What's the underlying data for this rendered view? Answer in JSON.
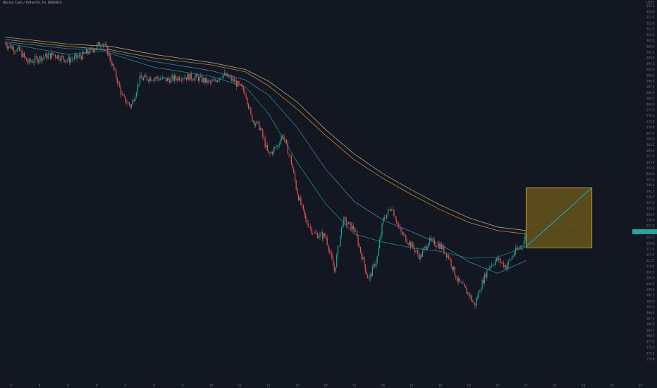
{
  "header": {
    "title": "Bitcoin Cash / TetherUS, 1h, BINANCE"
  },
  "price_axis": {
    "currency": "USDT",
    "labels": [
      "322.5",
      "320.0",
      "317.5",
      "315.0",
      "312.5",
      "310.0",
      "307.5",
      "305.0",
      "302.5",
      "300.0",
      "297.5",
      "295.0",
      "292.5",
      "290.0",
      "287.5",
      "285.0",
      "282.5",
      "280.0",
      "277.5",
      "275.0",
      "272.5",
      "270.0",
      "267.5",
      "265.0",
      "262.5",
      "260.0",
      "257.5",
      "255.0",
      "252.5",
      "250.0",
      "247.5",
      "245.0",
      "242.5",
      "240.0",
      "237.5",
      "235.0",
      "232.5",
      "230.0",
      "227.5",
      "225.0",
      "222.5",
      "220.0",
      "217.5",
      "215.0",
      "212.5",
      "210.0",
      "207.5",
      "205.0",
      "202.5",
      "200.0",
      "197.5",
      "195.0",
      "192.5",
      "190.0",
      "187.5",
      "185.0",
      "182.5",
      "180.0",
      "177.5",
      "175.0",
      "172.5",
      "170.0"
    ],
    "current_price": "225.0"
  },
  "time_axis": {
    "labels": [
      "3",
      "4",
      "5",
      "6",
      "7",
      "8",
      "9",
      "10",
      "11",
      "12",
      "13",
      "14",
      "15",
      "16",
      "17",
      "18",
      "19",
      "20",
      "21",
      "22",
      "23",
      "24",
      "25"
    ]
  },
  "colors": {
    "background": "#131722",
    "bull": "#26a69a",
    "bear": "#ef5350",
    "ma_fast": "#1e9e8f",
    "ma_slow": "#4a8fc7",
    "ma_orange": "#d99840",
    "ma_tan": "#cdb98a",
    "box_fill": "rgba(175,140,20,0.45)",
    "box_stroke": "#c8a52a",
    "projection": "#22b0c4",
    "axis_text": "#787b86",
    "price_tag": "#26a69a"
  },
  "chart_data": {
    "type": "candlestick",
    "title": "Bitcoin Cash / TetherUS, 1h, BINANCE",
    "ylim": [
      170,
      322.5
    ],
    "y_unit": "USDT",
    "x_ticks": [
      "3",
      "4",
      "5",
      "6",
      "7",
      "8",
      "9",
      "10",
      "11",
      "12",
      "13",
      "14",
      "15",
      "16",
      "17",
      "18",
      "19",
      "20",
      "21",
      "22",
      "23",
      "24",
      "25"
    ],
    "price_path": [
      {
        "day": 2.8,
        "price": 306.0
      },
      {
        "day": 3.3,
        "price": 303.0
      },
      {
        "day": 3.6,
        "price": 298.0
      },
      {
        "day": 4.0,
        "price": 300.0
      },
      {
        "day": 4.5,
        "price": 301.5
      },
      {
        "day": 5.0,
        "price": 299.0
      },
      {
        "day": 5.5,
        "price": 301.0
      },
      {
        "day": 6.0,
        "price": 305.0
      },
      {
        "day": 6.2,
        "price": 307.0
      },
      {
        "day": 6.4,
        "price": 302.0
      },
      {
        "day": 6.7,
        "price": 291.0
      },
      {
        "day": 6.9,
        "price": 283.0
      },
      {
        "day": 7.2,
        "price": 279.0
      },
      {
        "day": 7.5,
        "price": 291.0
      },
      {
        "day": 8.0,
        "price": 291.5
      },
      {
        "day": 8.5,
        "price": 290.5
      },
      {
        "day": 9.0,
        "price": 292.0
      },
      {
        "day": 9.5,
        "price": 291.5
      },
      {
        "day": 10.0,
        "price": 289.0
      },
      {
        "day": 10.4,
        "price": 293.0
      },
      {
        "day": 10.8,
        "price": 290.0
      },
      {
        "day": 11.2,
        "price": 285.0
      },
      {
        "day": 11.4,
        "price": 274.0
      },
      {
        "day": 11.7,
        "price": 270.0
      },
      {
        "day": 12.0,
        "price": 258.0
      },
      {
        "day": 12.3,
        "price": 262.0
      },
      {
        "day": 12.5,
        "price": 267.0
      },
      {
        "day": 12.8,
        "price": 255.0
      },
      {
        "day": 13.0,
        "price": 242.0
      },
      {
        "day": 13.3,
        "price": 230.0
      },
      {
        "day": 13.6,
        "price": 224.0
      },
      {
        "day": 14.0,
        "price": 223.0
      },
      {
        "day": 14.3,
        "price": 208.0
      },
      {
        "day": 14.6,
        "price": 230.0
      },
      {
        "day": 15.0,
        "price": 226.0
      },
      {
        "day": 15.5,
        "price": 204.0
      },
      {
        "day": 15.8,
        "price": 214.0
      },
      {
        "day": 16.0,
        "price": 230.0
      },
      {
        "day": 16.3,
        "price": 236.0
      },
      {
        "day": 16.6,
        "price": 225.0
      },
      {
        "day": 17.0,
        "price": 219.0
      },
      {
        "day": 17.3,
        "price": 214.0
      },
      {
        "day": 17.6,
        "price": 221.0
      },
      {
        "day": 18.0,
        "price": 219.0
      },
      {
        "day": 18.3,
        "price": 214.0
      },
      {
        "day": 18.6,
        "price": 204.0
      },
      {
        "day": 19.0,
        "price": 198.0
      },
      {
        "day": 19.2,
        "price": 193.0
      },
      {
        "day": 19.4,
        "price": 201.0
      },
      {
        "day": 19.7,
        "price": 210.0
      },
      {
        "day": 20.0,
        "price": 213.0
      },
      {
        "day": 20.3,
        "price": 210.0
      },
      {
        "day": 20.6,
        "price": 216.0
      },
      {
        "day": 20.9,
        "price": 220.0
      },
      {
        "day": 21.0,
        "price": 225.0
      }
    ],
    "moving_averages": [
      {
        "points": [
          {
            "day": 2.8,
            "price": 306.5
          },
          {
            "day": 5.0,
            "price": 301.5
          },
          {
            "day": 6.2,
            "price": 303.0
          },
          {
            "day": 8.0,
            "price": 296.0
          },
          {
            "day": 10.0,
            "price": 292.0
          },
          {
            "day": 11.2,
            "price": 287.5
          },
          {
            "day": 12.0,
            "price": 276.0
          },
          {
            "day": 13.0,
            "price": 255.0
          },
          {
            "day": 14.0,
            "price": 237.0
          },
          {
            "day": 15.0,
            "price": 224.0
          },
          {
            "day": 16.0,
            "price": 220.5
          },
          {
            "day": 17.0,
            "price": 218.0
          },
          {
            "day": 18.0,
            "price": 216.5
          },
          {
            "day": 19.0,
            "price": 213.5
          },
          {
            "day": 20.0,
            "price": 214.0
          },
          {
            "day": 21.0,
            "price": 218.5
          }
        ]
      },
      {
        "points": [
          {
            "day": 2.8,
            "price": 307.0
          },
          {
            "day": 5.0,
            "price": 304.0
          },
          {
            "day": 6.2,
            "price": 303.5
          },
          {
            "day": 8.0,
            "price": 298.5
          },
          {
            "day": 10.0,
            "price": 294.5
          },
          {
            "day": 11.2,
            "price": 290.5
          },
          {
            "day": 12.0,
            "price": 284.0
          },
          {
            "day": 13.0,
            "price": 270.0
          },
          {
            "day": 14.0,
            "price": 252.0
          },
          {
            "day": 15.0,
            "price": 238.0
          },
          {
            "day": 16.0,
            "price": 230.0
          },
          {
            "day": 17.0,
            "price": 225.0
          },
          {
            "day": 18.0,
            "price": 219.5
          },
          {
            "day": 19.0,
            "price": 212.0
          },
          {
            "day": 20.0,
            "price": 207.0
          },
          {
            "day": 21.0,
            "price": 212.5
          }
        ]
      },
      {
        "points": [
          {
            "day": 2.8,
            "price": 308.0
          },
          {
            "day": 5.0,
            "price": 305.0
          },
          {
            "day": 6.5,
            "price": 303.5
          },
          {
            "day": 8.0,
            "price": 300.0
          },
          {
            "day": 10.0,
            "price": 297.0
          },
          {
            "day": 11.2,
            "price": 294.0
          },
          {
            "day": 12.0,
            "price": 288.0
          },
          {
            "day": 13.0,
            "price": 278.0
          },
          {
            "day": 14.0,
            "price": 266.5
          },
          {
            "day": 15.0,
            "price": 256.0
          },
          {
            "day": 16.0,
            "price": 248.0
          },
          {
            "day": 17.0,
            "price": 241.0
          },
          {
            "day": 18.0,
            "price": 234.5
          },
          {
            "day": 19.0,
            "price": 229.0
          },
          {
            "day": 20.0,
            "price": 225.5
          },
          {
            "day": 21.0,
            "price": 224.0
          }
        ]
      },
      {
        "points": [
          {
            "day": 2.8,
            "price": 309.0
          },
          {
            "day": 5.0,
            "price": 306.0
          },
          {
            "day": 6.5,
            "price": 305.0
          },
          {
            "day": 8.0,
            "price": 301.5
          },
          {
            "day": 10.0,
            "price": 298.0
          },
          {
            "day": 11.2,
            "price": 295.0
          },
          {
            "day": 12.0,
            "price": 290.0
          },
          {
            "day": 13.0,
            "price": 281.0
          },
          {
            "day": 14.0,
            "price": 269.0
          },
          {
            "day": 15.0,
            "price": 258.5
          },
          {
            "day": 16.0,
            "price": 250.0
          },
          {
            "day": 17.0,
            "price": 243.0
          },
          {
            "day": 18.0,
            "price": 236.5
          },
          {
            "day": 19.0,
            "price": 231.0
          },
          {
            "day": 20.0,
            "price": 227.0
          },
          {
            "day": 21.0,
            "price": 225.5
          }
        ]
      }
    ],
    "annotations": [
      {
        "type": "rectangle",
        "day_from": 21.0,
        "day_to": 23.3,
        "price_from": 218.0,
        "price_to": 244.0
      },
      {
        "type": "projection_line",
        "from": {
          "day": 21.0,
          "price": 218.5
        },
        "to": {
          "day": 23.3,
          "price": 244.0
        }
      }
    ]
  }
}
